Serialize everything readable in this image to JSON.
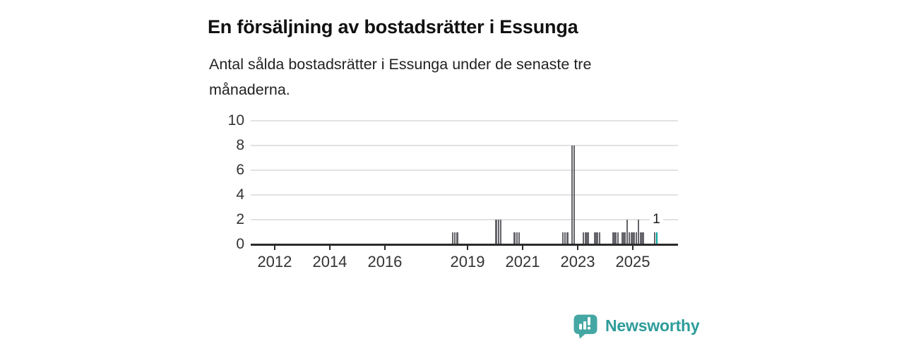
{
  "header": {
    "title": "En försäljning av bostadsrätter i Essunga",
    "subtitle_lines": [
      "Antal sålda bostadsrätter i Essunga under de senaste tre",
      "månaderna."
    ]
  },
  "chart_data": {
    "type": "bar",
    "title": "En försäljning av bostadsrätter i Essunga",
    "subtitle": "Antal sålda bostadsrätter i Essunga under de senaste tre månaderna.",
    "xlabel": "",
    "ylabel": "",
    "ylim": [
      0,
      10
    ],
    "y_ticks": [
      0,
      2,
      4,
      6,
      8,
      10
    ],
    "x_tick_labels": [
      "2012",
      "2014",
      "2016",
      "2019",
      "2021",
      "2023",
      "2025"
    ],
    "x_tick_years": [
      2012,
      2014,
      2016,
      2019,
      2021,
      2023,
      2025
    ],
    "x_domain": [
      2011.13,
      2026.64
    ],
    "grid": "horizontal",
    "legend": "none",
    "note": "monthly bars; months not listed have value 0",
    "points": [
      {
        "month": "2018-06",
        "value": 1
      },
      {
        "month": "2018-07",
        "value": 1
      },
      {
        "month": "2018-08",
        "value": 1
      },
      {
        "month": "2020-01",
        "value": 2
      },
      {
        "month": "2020-02",
        "value": 2
      },
      {
        "month": "2020-03",
        "value": 2
      },
      {
        "month": "2020-09",
        "value": 1
      },
      {
        "month": "2020-10",
        "value": 1
      },
      {
        "month": "2020-11",
        "value": 1
      },
      {
        "month": "2022-06",
        "value": 1
      },
      {
        "month": "2022-07",
        "value": 1
      },
      {
        "month": "2022-08",
        "value": 1
      },
      {
        "month": "2022-10",
        "value": 8
      },
      {
        "month": "2022-11",
        "value": 8
      },
      {
        "month": "2023-03",
        "value": 1
      },
      {
        "month": "2023-04",
        "value": 1
      },
      {
        "month": "2023-05",
        "value": 1
      },
      {
        "month": "2023-08",
        "value": 1
      },
      {
        "month": "2023-09",
        "value": 1
      },
      {
        "month": "2023-10",
        "value": 1
      },
      {
        "month": "2024-04",
        "value": 1
      },
      {
        "month": "2024-05",
        "value": 1
      },
      {
        "month": "2024-06",
        "value": 1
      },
      {
        "month": "2024-08",
        "value": 1
      },
      {
        "month": "2024-09",
        "value": 1
      },
      {
        "month": "2024-10",
        "value": 2
      },
      {
        "month": "2024-11",
        "value": 1
      },
      {
        "month": "2024-12",
        "value": 1
      },
      {
        "month": "2025-01",
        "value": 1
      },
      {
        "month": "2025-02",
        "value": 1
      },
      {
        "month": "2025-03",
        "value": 2
      },
      {
        "month": "2025-04",
        "value": 1
      },
      {
        "month": "2025-05",
        "value": 1
      },
      {
        "month": "2025-10",
        "value": 1
      },
      {
        "month": "2025-11",
        "value": 1,
        "highlight": true,
        "label": "1"
      }
    ],
    "colors": {
      "bar": "#64646a",
      "highlight": "#00a19b",
      "grid": "#e2e2e2",
      "axis": "#2b2b2b",
      "tick_text": "#333333"
    }
  },
  "footer": {
    "brand": "Newsworthy",
    "brand_color": "#2d9c9a",
    "logo_icon_color": "#45a7a3"
  }
}
